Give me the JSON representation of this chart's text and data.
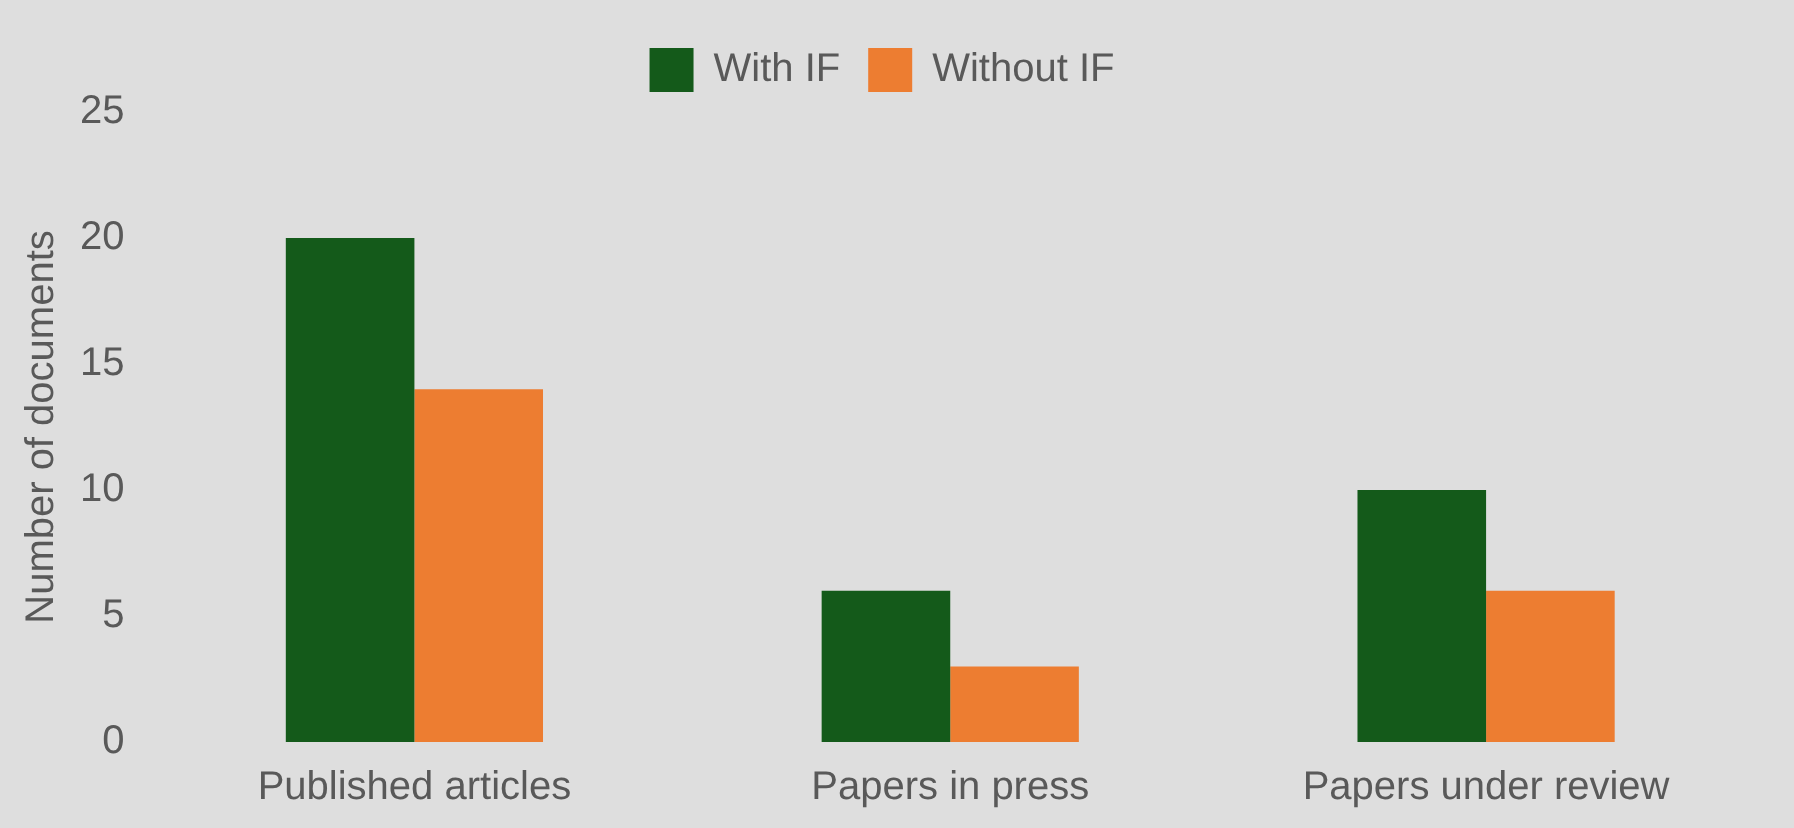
{
  "chart_data": {
    "type": "bar",
    "ylabel": "Number of documents",
    "categories": [
      "Published articles",
      "Papers in press",
      "Papers under review"
    ],
    "series": [
      {
        "name": "With IF",
        "color": "#145a1a",
        "values": [
          20,
          6,
          10
        ]
      },
      {
        "name": "Without IF",
        "color": "#ed7d31",
        "values": [
          14,
          3,
          6
        ]
      }
    ],
    "ylim": [
      0,
      25
    ],
    "yticks": [
      0,
      5,
      10,
      15,
      20,
      25
    ],
    "grid": false,
    "legend": "top"
  }
}
